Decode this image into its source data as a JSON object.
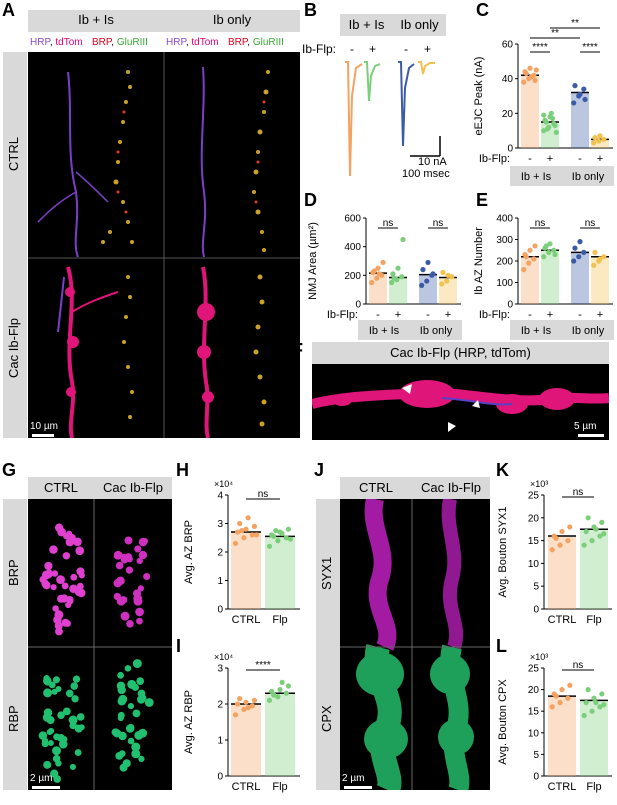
{
  "panels": {
    "A": {
      "label": "A",
      "columns": [
        "Ib + Is",
        "Ib only"
      ],
      "rows": [
        "CTRL",
        "Cac Ib-Flp"
      ],
      "stain_left": [
        {
          "t": "HRP",
          "c": "#8a4bd6"
        },
        {
          "t": ", ",
          "c": "#000"
        },
        {
          "t": "tdTom",
          "c": "#e0007a"
        }
      ],
      "stain_right": [
        {
          "t": "BRP",
          "c": "#e0001a"
        },
        {
          "t": ", ",
          "c": "#000"
        },
        {
          "t": "GluRIII",
          "c": "#3aa935"
        }
      ],
      "scale": "10 µm"
    },
    "B": {
      "label": "B",
      "columns": [
        "Ib + Is",
        "Ib only"
      ],
      "flp_label": "Ib-Flp:",
      "flp_values": [
        "-",
        "+",
        "-",
        "+"
      ],
      "scale_current": "10 nA",
      "scale_time": "100 msec"
    },
    "C": {
      "label": "C",
      "ylabel": "eEJC Peak (nA)",
      "yticks": [
        "0",
        "20",
        "40",
        "60"
      ],
      "flp_label": "Ib-Flp:",
      "flp_values": [
        "-",
        "+",
        "-",
        "+"
      ],
      "groups": [
        "Ib + Is",
        "Ib only"
      ],
      "sig": [
        "****",
        "**",
        "**",
        "****"
      ]
    },
    "D": {
      "label": "D",
      "ylabel": "NMJ Area (µm²)",
      "yticks": [
        "0",
        "200",
        "400",
        "600"
      ],
      "flp_label": "Ib-Flp:",
      "flp_values": [
        "-",
        "+",
        "-",
        "+"
      ],
      "groups": [
        "Ib + Is",
        "Ib only"
      ],
      "sig": [
        "ns",
        "ns"
      ]
    },
    "E": {
      "label": "E",
      "ylabel": "Ib AZ Number",
      "yticks": [
        "0",
        "100",
        "200",
        "300",
        "400"
      ],
      "flp_label": "Ib-Flp:",
      "flp_values": [
        "-",
        "+",
        "-",
        "+"
      ],
      "groups": [
        "Ib + Is",
        "Ib only"
      ],
      "sig": [
        "ns",
        "ns"
      ]
    },
    "F": {
      "label": "F",
      "title": "Cac Ib-Flp (HRP, tdTom)",
      "scale": "5 µm"
    },
    "G": {
      "label": "G",
      "columns": [
        "CTRL",
        "Cac Ib-Flp"
      ],
      "rows": [
        "BRP",
        "RBP"
      ],
      "scale": "2 µm"
    },
    "H": {
      "label": "H",
      "exponent": "×10⁴",
      "ylabel": "Avg. AZ BRP",
      "yticks": [
        "0",
        "1",
        "2",
        "3",
        "4"
      ],
      "categories": [
        "CTRL",
        "Flp"
      ],
      "sig": "ns"
    },
    "I": {
      "label": "I",
      "exponent": "×10⁴",
      "ylabel": "Avg. AZ RBP",
      "yticks": [
        "0",
        "1",
        "2",
        "3"
      ],
      "categories": [
        "CTRL",
        "Flp"
      ],
      "sig": "****"
    },
    "J": {
      "label": "J",
      "columns": [
        "CTRL",
        "Cac Ib-Flp"
      ],
      "rows": [
        "SYX1",
        "CPX"
      ],
      "scale": "2 µm"
    },
    "K": {
      "label": "K",
      "exponent": "×10³",
      "ylabel": "Avg. Bouton SYX1",
      "yticks": [
        "0",
        "5",
        "10",
        "15",
        "20",
        "25"
      ],
      "categories": [
        "CTRL",
        "Flp"
      ],
      "sig": "ns"
    },
    "L": {
      "label": "L",
      "exponent": "×10³",
      "ylabel": "Avg. Bouton CPX",
      "yticks": [
        "0",
        "5",
        "10",
        "15",
        "20",
        "25"
      ],
      "categories": [
        "CTRL",
        "Flp"
      ],
      "sig": "ns"
    }
  },
  "chart_data": [
    {
      "panel": "C",
      "type": "bar",
      "categories": [
        "Ib+Is -",
        "Ib+Is +",
        "Ib only -",
        "Ib only +"
      ],
      "values": [
        42,
        15,
        32,
        5
      ],
      "colors": [
        "#f4a261",
        "#7ccf7a",
        "#3b5ba9",
        "#f2c14e"
      ],
      "ylim": [
        0,
        60
      ],
      "points": [
        [
          38,
          40,
          42,
          44,
          46,
          39,
          43,
          41,
          45
        ],
        [
          10,
          12,
          14,
          16,
          18,
          13,
          15,
          20,
          9,
          11,
          17,
          19
        ],
        [
          26,
          30,
          34,
          36,
          31,
          28
        ],
        [
          3,
          4,
          5,
          6,
          7
        ]
      ]
    },
    {
      "panel": "D",
      "type": "bar",
      "categories": [
        "Ib+Is -",
        "Ib+Is +",
        "Ib only -",
        "Ib only +"
      ],
      "values": [
        215,
        185,
        205,
        185
      ],
      "colors": [
        "#f4a261",
        "#7ccf7a",
        "#3b5ba9",
        "#f2c14e"
      ],
      "ylim": [
        0,
        600
      ],
      "points": [
        [
          150,
          180,
          200,
          220,
          250,
          290,
          230,
          210
        ],
        [
          150,
          170,
          190,
          210,
          250,
          450,
          180
        ],
        [
          130,
          160,
          200,
          240,
          290,
          210
        ],
        [
          140,
          160,
          190,
          220,
          200
        ]
      ]
    },
    {
      "panel": "E",
      "type": "bar",
      "categories": [
        "Ib+Is -",
        "Ib+Is +",
        "Ib only -",
        "Ib only +"
      ],
      "values": [
        220,
        250,
        240,
        220
      ],
      "colors": [
        "#f4a261",
        "#7ccf7a",
        "#3b5ba9",
        "#f2c14e"
      ],
      "ylim": [
        0,
        400
      ],
      "points": [
        [
          160,
          190,
          210,
          230,
          250,
          270,
          220
        ],
        [
          220,
          240,
          250,
          260,
          280,
          230,
          270
        ],
        [
          200,
          220,
          240,
          260,
          290
        ],
        [
          180,
          200,
          220,
          240,
          210
        ]
      ]
    },
    {
      "panel": "H",
      "type": "bar",
      "categories": [
        "CTRL",
        "Flp"
      ],
      "values": [
        2.7,
        2.55
      ],
      "colors": [
        "#f4a261",
        "#7ccf7a"
      ],
      "ylim": [
        0,
        4
      ],
      "points": [
        [
          2.3,
          2.5,
          2.6,
          2.7,
          2.8,
          2.9,
          3.0,
          3.2,
          2.6,
          2.75
        ],
        [
          2.2,
          2.4,
          2.5,
          2.6,
          2.7,
          2.8,
          2.55,
          2.65,
          2.45,
          2.75
        ]
      ]
    },
    {
      "panel": "I",
      "type": "bar",
      "categories": [
        "CTRL",
        "Flp"
      ],
      "values": [
        2.0,
        2.3
      ],
      "colors": [
        "#f4a261",
        "#7ccf7a"
      ],
      "ylim": [
        0,
        3
      ],
      "points": [
        [
          1.7,
          1.85,
          1.95,
          2.0,
          2.05,
          2.1,
          2.15,
          1.9
        ],
        [
          2.1,
          2.2,
          2.3,
          2.35,
          2.4,
          2.5,
          2.25,
          2.6
        ]
      ]
    },
    {
      "panel": "K",
      "type": "bar",
      "categories": [
        "CTRL",
        "Flp"
      ],
      "values": [
        16,
        17.5
      ],
      "colors": [
        "#f4a261",
        "#7ccf7a"
      ],
      "ylim": [
        0,
        25
      ],
      "points": [
        [
          13,
          14,
          15,
          16,
          17,
          18,
          15.5
        ],
        [
          14,
          15,
          16,
          17,
          18,
          19,
          20,
          17.5,
          16.5
        ]
      ]
    },
    {
      "panel": "L",
      "type": "bar",
      "categories": [
        "CTRL",
        "Flp"
      ],
      "values": [
        18.5,
        17.5
      ],
      "colors": [
        "#f4a261",
        "#7ccf7a"
      ],
      "ylim": [
        0,
        25
      ],
      "points": [
        [
          16,
          17,
          18,
          19,
          20,
          21,
          18.5
        ],
        [
          14,
          15,
          16,
          17,
          18,
          19,
          20,
          17,
          16.5
        ]
      ]
    }
  ]
}
